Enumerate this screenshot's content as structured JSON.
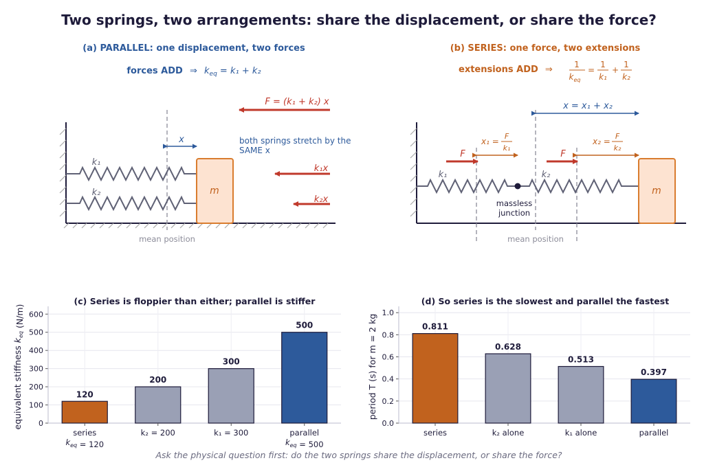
{
  "title": "Two springs, two arrangements:  share the displacement, or share the force?",
  "panel_a": {
    "heading": "(a)  PARALLEL:  one displacement, two forces",
    "rule_label": "forces ADD",
    "arrow": "⇒",
    "rule_eq_lhs": "k",
    "rule_eq_lhs_sub": "eq",
    "rule_eq_rhs": " = k₁ + k₂",
    "force_label": "F = (k₁ + k₂) x",
    "x_label": "x",
    "k1_label": "k₁",
    "k2_label": "k₂",
    "mass_label": "m",
    "note_line1": "both springs stretch by the",
    "note_line2": "SAME x",
    "k1x_label": "k₁x",
    "k2x_label": "k₂x",
    "mean_label": "mean position"
  },
  "panel_b": {
    "heading": "(b)  SERIES:  one force, two extensions",
    "rule_label": "extensions ADD",
    "arrow": "⇒",
    "x_total_label": "x = x₁ + x₂",
    "x1_lhs": "x₁ =",
    "x2_lhs": "x₂ =",
    "F_label": "F",
    "k1_label": "k₁",
    "k2_label": "k₂",
    "junction_line1": "massless",
    "junction_line2": "junction",
    "mass_label": "m",
    "mean_label": "mean position"
  },
  "colors": {
    "blue": "#2d5a9b",
    "orange": "#c1621e",
    "gray_bar": "#9aa0b5",
    "red": "#c0392b",
    "dark": "#1e1b3a",
    "mass_fill": "#fde3d1"
  },
  "chart_data": [
    {
      "type": "bar",
      "title": "(c)  Series is floppier than either;  parallel is stiffer",
      "ylabel": "equivalent stiffness  k_eq  (N/m)",
      "categories": [
        [
          "series",
          "k_eq = 120"
        ],
        [
          "k₂ = 200"
        ],
        [
          "k₁ = 300"
        ],
        [
          "parallel",
          "k_eq = 500"
        ]
      ],
      "values": [
        120,
        200,
        300,
        500
      ],
      "value_labels": [
        "120",
        "200",
        "300",
        "500"
      ],
      "colors": [
        "#c1621e",
        "#9aa0b5",
        "#9aa0b5",
        "#2d5a9b"
      ],
      "ylim": [
        0,
        620
      ],
      "yticks": [
        0,
        100,
        200,
        300,
        400,
        500,
        600
      ],
      "grid": true
    },
    {
      "type": "bar",
      "title": "(d)  So series is the slowest and parallel the fastest",
      "ylabel": "period  T  (s)   for  m = 2 kg",
      "categories": [
        [
          "series"
        ],
        [
          "k₂ alone"
        ],
        [
          "k₁ alone"
        ],
        [
          "parallel"
        ]
      ],
      "values": [
        0.811,
        0.628,
        0.513,
        0.397
      ],
      "value_labels": [
        "0.811",
        "0.628",
        "0.513",
        "0.397"
      ],
      "colors": [
        "#c1621e",
        "#9aa0b5",
        "#9aa0b5",
        "#2d5a9b"
      ],
      "ylim": [
        0,
        1.02
      ],
      "yticks": [
        0.0,
        0.2,
        0.4,
        0.6,
        0.8,
        1.0
      ],
      "ytick_labels": [
        "0.0",
        "0.2",
        "0.4",
        "0.6",
        "0.8",
        "1.0"
      ],
      "grid": true
    }
  ],
  "footer": "Ask the physical question first: do the two springs share the displacement, or share the force?"
}
